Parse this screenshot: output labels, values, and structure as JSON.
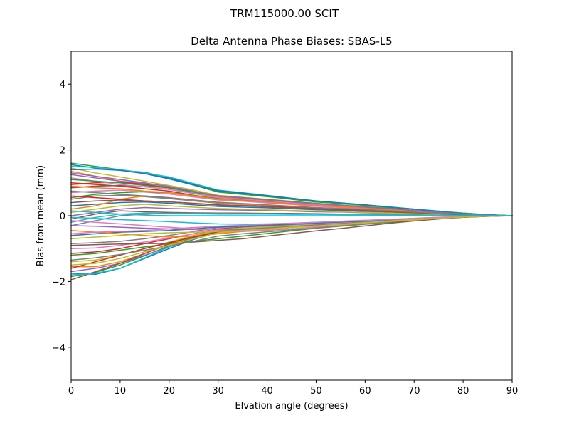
{
  "figure": {
    "suptitle": "TRM115000.00    SCIT"
  },
  "chart_data": {
    "type": "line",
    "title": "Delta Antenna Phase Biases: SBAS-L5",
    "xlabel": "Elvation angle (degrees)",
    "ylabel": "Bias from mean (mm)",
    "xlim": [
      0,
      90
    ],
    "ylim": [
      -5,
      5
    ],
    "xticks": [
      0,
      10,
      20,
      30,
      40,
      50,
      60,
      70,
      80,
      90
    ],
    "yticks": [
      -4,
      -2,
      0,
      2,
      4
    ],
    "ytick_labels": [
      "−4",
      "−2",
      "0",
      "2",
      "4"
    ],
    "grid": false,
    "legend": "none",
    "x": [
      0,
      5,
      10,
      15,
      20,
      25,
      30,
      35,
      40,
      45,
      50,
      55,
      60,
      65,
      70,
      75,
      80,
      85,
      90
    ],
    "series": [
      {
        "color": "#1f77b4",
        "values": [
          1.55,
          1.45,
          1.38,
          1.32,
          1.15,
          0.95,
          0.75,
          0.68,
          0.6,
          0.5,
          0.42,
          0.38,
          0.32,
          0.26,
          0.2,
          0.14,
          0.08,
          0.03,
          0.0
        ]
      },
      {
        "color": "#ff7f0e",
        "values": [
          1.35,
          1.2,
          1.05,
          0.95,
          0.85,
          0.72,
          0.58,
          0.52,
          0.46,
          0.4,
          0.34,
          0.3,
          0.26,
          0.21,
          0.16,
          0.11,
          0.06,
          0.02,
          0.0
        ]
      },
      {
        "color": "#2ca02c",
        "values": [
          1.6,
          1.5,
          1.4,
          1.3,
          1.12,
          0.93,
          0.72,
          0.65,
          0.58,
          0.5,
          0.42,
          0.37,
          0.31,
          0.25,
          0.19,
          0.13,
          0.07,
          0.03,
          0.0
        ]
      },
      {
        "color": "#d62728",
        "values": [
          1.0,
          0.95,
          0.9,
          0.82,
          0.75,
          0.62,
          0.5,
          0.45,
          0.4,
          0.35,
          0.3,
          0.26,
          0.22,
          0.18,
          0.14,
          0.09,
          0.05,
          0.02,
          0.0
        ]
      },
      {
        "color": "#9467bd",
        "values": [
          1.25,
          1.15,
          1.05,
          0.98,
          0.9,
          0.75,
          0.6,
          0.55,
          0.49,
          0.43,
          0.37,
          0.32,
          0.27,
          0.22,
          0.17,
          0.11,
          0.06,
          0.02,
          0.0
        ]
      },
      {
        "color": "#8c564b",
        "values": [
          0.85,
          0.9,
          0.92,
          0.88,
          0.8,
          0.68,
          0.55,
          0.5,
          0.45,
          0.39,
          0.33,
          0.29,
          0.25,
          0.2,
          0.15,
          0.1,
          0.06,
          0.02,
          0.0
        ]
      },
      {
        "color": "#e377c2",
        "values": [
          0.7,
          0.75,
          0.78,
          0.72,
          0.66,
          0.57,
          0.48,
          0.44,
          0.39,
          0.34,
          0.29,
          0.25,
          0.21,
          0.17,
          0.13,
          0.09,
          0.05,
          0.02,
          0.0
        ]
      },
      {
        "color": "#7f7f7f",
        "values": [
          0.5,
          0.6,
          0.62,
          0.58,
          0.52,
          0.45,
          0.38,
          0.35,
          0.31,
          0.27,
          0.23,
          0.2,
          0.17,
          0.14,
          0.11,
          0.07,
          0.04,
          0.01,
          0.0
        ]
      },
      {
        "color": "#bcbd22",
        "values": [
          1.45,
          1.3,
          1.18,
          1.05,
          0.92,
          0.78,
          0.62,
          0.56,
          0.5,
          0.44,
          0.38,
          0.33,
          0.28,
          0.22,
          0.17,
          0.11,
          0.06,
          0.02,
          0.0
        ]
      },
      {
        "color": "#17becf",
        "values": [
          1.5,
          1.47,
          1.4,
          1.3,
          1.18,
          0.98,
          0.78,
          0.7,
          0.62,
          0.53,
          0.45,
          0.39,
          0.33,
          0.27,
          0.2,
          0.14,
          0.08,
          0.03,
          0.0
        ]
      },
      {
        "color": "#1f77b4",
        "values": [
          0.3,
          0.35,
          0.4,
          0.42,
          0.38,
          0.33,
          0.28,
          0.26,
          0.24,
          0.21,
          0.18,
          0.16,
          0.13,
          0.11,
          0.08,
          0.05,
          0.03,
          0.01,
          0.0
        ]
      },
      {
        "color": "#ff7f0e",
        "values": [
          0.2,
          0.3,
          0.5,
          0.6,
          0.55,
          0.47,
          0.4,
          0.36,
          0.32,
          0.28,
          0.24,
          0.21,
          0.18,
          0.14,
          0.11,
          0.07,
          0.04,
          0.01,
          0.0
        ]
      },
      {
        "color": "#2ca02c",
        "values": [
          0.55,
          0.65,
          0.7,
          0.73,
          0.7,
          0.62,
          0.52,
          0.47,
          0.42,
          0.37,
          0.32,
          0.28,
          0.24,
          0.19,
          0.15,
          0.1,
          0.05,
          0.02,
          0.0
        ]
      },
      {
        "color": "#d62728",
        "values": [
          0.95,
          1.0,
          1.02,
          0.95,
          0.85,
          0.72,
          0.6,
          0.54,
          0.48,
          0.42,
          0.36,
          0.31,
          0.26,
          0.21,
          0.16,
          0.1,
          0.05,
          0.02,
          0.0
        ]
      },
      {
        "color": "#9467bd",
        "values": [
          0.0,
          0.1,
          0.2,
          0.25,
          0.22,
          0.2,
          0.18,
          0.17,
          0.16,
          0.14,
          0.12,
          0.11,
          0.09,
          0.07,
          0.05,
          0.03,
          0.02,
          0.01,
          0.0
        ]
      },
      {
        "color": "#8c564b",
        "values": [
          -0.1,
          0.05,
          0.15,
          0.12,
          0.1,
          0.09,
          0.08,
          0.08,
          0.07,
          0.07,
          0.06,
          0.05,
          0.04,
          0.03,
          0.02,
          0.02,
          0.01,
          0.0,
          0.0
        ]
      },
      {
        "color": "#e377c2",
        "values": [
          1.15,
          1.05,
          0.95,
          0.88,
          0.8,
          0.67,
          0.55,
          0.5,
          0.45,
          0.39,
          0.33,
          0.29,
          0.25,
          0.2,
          0.15,
          0.1,
          0.05,
          0.02,
          0.0
        ]
      },
      {
        "color": "#7f7f7f",
        "values": [
          -0.3,
          -0.15,
          0.0,
          0.05,
          0.08,
          0.08,
          0.07,
          0.07,
          0.06,
          0.06,
          0.05,
          0.04,
          0.04,
          0.03,
          0.02,
          0.01,
          0.01,
          0.0,
          0.0
        ]
      },
      {
        "color": "#bcbd22",
        "values": [
          0.1,
          0.2,
          0.3,
          0.35,
          0.3,
          0.26,
          0.22,
          0.2,
          0.18,
          0.16,
          0.14,
          0.12,
          0.1,
          0.08,
          0.06,
          0.04,
          0.02,
          0.01,
          0.0
        ]
      },
      {
        "color": "#17becf",
        "values": [
          -0.2,
          -0.05,
          0.05,
          0.08,
          0.06,
          0.06,
          0.05,
          0.05,
          0.05,
          0.04,
          0.04,
          0.03,
          0.03,
          0.02,
          0.02,
          0.01,
          0.01,
          0.0,
          0.0
        ]
      },
      {
        "color": "#1f77b4",
        "values": [
          -1.75,
          -1.78,
          -1.6,
          -1.3,
          -1.0,
          -0.72,
          -0.5,
          -0.42,
          -0.38,
          -0.34,
          -0.3,
          -0.26,
          -0.22,
          -0.17,
          -0.12,
          -0.08,
          -0.04,
          -0.01,
          0.0
        ]
      },
      {
        "color": "#ff7f0e",
        "values": [
          -1.55,
          -1.55,
          -1.4,
          -1.15,
          -0.88,
          -0.62,
          -0.45,
          -0.38,
          -0.34,
          -0.3,
          -0.27,
          -0.23,
          -0.19,
          -0.15,
          -0.11,
          -0.07,
          -0.04,
          -0.01,
          0.0
        ]
      },
      {
        "color": "#2ca02c",
        "values": [
          -1.85,
          -1.72,
          -1.5,
          -1.22,
          -0.92,
          -0.66,
          -0.47,
          -0.4,
          -0.36,
          -0.32,
          -0.28,
          -0.24,
          -0.2,
          -0.16,
          -0.12,
          -0.08,
          -0.04,
          -0.01,
          0.0
        ]
      },
      {
        "color": "#d62728",
        "values": [
          -1.15,
          -1.1,
          -1.0,
          -0.85,
          -0.7,
          -0.55,
          -0.4,
          -0.35,
          -0.31,
          -0.28,
          -0.25,
          -0.21,
          -0.17,
          -0.14,
          -0.1,
          -0.07,
          -0.03,
          -0.01,
          0.0
        ]
      },
      {
        "color": "#9467bd",
        "values": [
          -1.7,
          -1.6,
          -1.45,
          -1.2,
          -0.95,
          -0.7,
          -0.5,
          -0.43,
          -0.38,
          -0.34,
          -0.3,
          -0.26,
          -0.21,
          -0.17,
          -0.12,
          -0.08,
          -0.04,
          -0.01,
          0.0
        ]
      },
      {
        "color": "#8c564b",
        "values": [
          -1.95,
          -1.7,
          -1.45,
          -1.15,
          -0.85,
          -0.6,
          -0.42,
          -0.36,
          -0.32,
          -0.29,
          -0.26,
          -0.22,
          -0.18,
          -0.14,
          -0.1,
          -0.07,
          -0.03,
          -0.01,
          0.0
        ]
      },
      {
        "color": "#e377c2",
        "values": [
          -1.0,
          -0.98,
          -0.9,
          -0.8,
          -0.68,
          -0.55,
          -0.42,
          -0.37,
          -0.33,
          -0.3,
          -0.26,
          -0.22,
          -0.18,
          -0.14,
          -0.1,
          -0.07,
          -0.03,
          -0.01,
          0.0
        ]
      },
      {
        "color": "#7f7f7f",
        "values": [
          -0.85,
          -0.82,
          -0.78,
          -0.7,
          -0.6,
          -0.48,
          -0.36,
          -0.32,
          -0.29,
          -0.26,
          -0.23,
          -0.19,
          -0.16,
          -0.13,
          -0.09,
          -0.06,
          -0.03,
          -0.01,
          0.0
        ]
      },
      {
        "color": "#bcbd22",
        "values": [
          -1.4,
          -1.35,
          -1.2,
          -1.0,
          -0.8,
          -0.6,
          -0.44,
          -0.38,
          -0.34,
          -0.3,
          -0.27,
          -0.23,
          -0.19,
          -0.15,
          -0.11,
          -0.07,
          -0.04,
          -0.01,
          0.0
        ]
      },
      {
        "color": "#17becf",
        "values": [
          -1.8,
          -1.75,
          -1.6,
          -1.28,
          -0.95,
          -0.68,
          -0.48,
          -0.41,
          -0.37,
          -0.33,
          -0.29,
          -0.25,
          -0.21,
          -0.16,
          -0.12,
          -0.08,
          -0.04,
          -0.01,
          0.0
        ]
      },
      {
        "color": "#1f77b4",
        "values": [
          -0.6,
          -0.55,
          -0.5,
          -0.48,
          -0.45,
          -0.4,
          -0.34,
          -0.31,
          -0.28,
          -0.25,
          -0.22,
          -0.19,
          -0.16,
          -0.12,
          -0.09,
          -0.06,
          -0.03,
          -0.01,
          0.0
        ]
      },
      {
        "color": "#ff7f0e",
        "values": [
          -0.45,
          -0.5,
          -0.55,
          -0.6,
          -0.65,
          -0.62,
          -0.55,
          -0.48,
          -0.42,
          -0.36,
          -0.3,
          -0.25,
          -0.2,
          -0.15,
          -0.11,
          -0.07,
          -0.04,
          -0.01,
          0.0
        ]
      },
      {
        "color": "#2ca02c",
        "values": [
          -1.2,
          -1.15,
          -1.05,
          -0.95,
          -0.85,
          -0.78,
          -0.7,
          -0.62,
          -0.54,
          -0.46,
          -0.38,
          -0.32,
          -0.26,
          -0.2,
          -0.14,
          -0.09,
          -0.05,
          -0.02,
          0.0
        ]
      },
      {
        "color": "#d62728",
        "values": [
          -1.6,
          -1.4,
          -1.2,
          -1.0,
          -0.82,
          -0.65,
          -0.5,
          -0.43,
          -0.38,
          -0.34,
          -0.3,
          -0.26,
          -0.21,
          -0.17,
          -0.12,
          -0.08,
          -0.04,
          -0.01,
          0.0
        ]
      },
      {
        "color": "#9467bd",
        "values": [
          -0.3,
          -0.32,
          -0.35,
          -0.38,
          -0.4,
          -0.42,
          -0.44,
          -0.42,
          -0.38,
          -0.33,
          -0.28,
          -0.24,
          -0.19,
          -0.15,
          -0.11,
          -0.07,
          -0.04,
          -0.01,
          0.0
        ]
      },
      {
        "color": "#8c564b",
        "values": [
          -0.9,
          -0.88,
          -0.86,
          -0.85,
          -0.84,
          -0.8,
          -0.75,
          -0.7,
          -0.62,
          -0.54,
          -0.46,
          -0.39,
          -0.31,
          -0.23,
          -0.16,
          -0.1,
          -0.05,
          -0.02,
          0.0
        ]
      },
      {
        "color": "#e377c2",
        "values": [
          -0.15,
          -0.2,
          -0.25,
          -0.3,
          -0.35,
          -0.4,
          -0.45,
          -0.48,
          -0.45,
          -0.4,
          -0.34,
          -0.29,
          -0.24,
          -0.18,
          -0.13,
          -0.08,
          -0.04,
          -0.01,
          0.0
        ]
      },
      {
        "color": "#7f7f7f",
        "values": [
          -1.35,
          -1.28,
          -1.18,
          -1.05,
          -0.92,
          -0.78,
          -0.62,
          -0.55,
          -0.49,
          -0.43,
          -0.37,
          -0.31,
          -0.25,
          -0.19,
          -0.13,
          -0.08,
          -0.04,
          -0.01,
          0.0
        ]
      },
      {
        "color": "#bcbd22",
        "values": [
          -0.7,
          -0.65,
          -0.6,
          -0.55,
          -0.52,
          -0.5,
          -0.48,
          -0.45,
          -0.41,
          -0.36,
          -0.31,
          -0.26,
          -0.21,
          -0.16,
          -0.11,
          -0.07,
          -0.04,
          -0.01,
          0.0
        ]
      },
      {
        "color": "#17becf",
        "values": [
          -0.05,
          -0.08,
          -0.12,
          -0.15,
          -0.18,
          -0.22,
          -0.25,
          -0.26,
          -0.25,
          -0.23,
          -0.2,
          -0.17,
          -0.14,
          -0.11,
          -0.08,
          -0.05,
          -0.03,
          -0.01,
          0.0
        ]
      },
      {
        "color": "#1f77b4",
        "values": [
          1.4,
          1.42,
          1.38,
          1.28,
          1.12,
          0.94,
          0.76,
          0.69,
          0.61,
          0.53,
          0.45,
          0.39,
          0.33,
          0.26,
          0.2,
          0.13,
          0.07,
          0.03,
          0.0
        ]
      },
      {
        "color": "#ff7f0e",
        "values": [
          0.9,
          0.85,
          0.82,
          0.75,
          0.7,
          0.6,
          0.5,
          0.46,
          0.41,
          0.36,
          0.31,
          0.27,
          0.23,
          0.18,
          0.14,
          0.09,
          0.05,
          0.02,
          0.0
        ]
      },
      {
        "color": "#2ca02c",
        "values": [
          1.1,
          1.05,
          1.0,
          0.92,
          0.84,
          0.72,
          0.6,
          0.55,
          0.49,
          0.43,
          0.37,
          0.32,
          0.27,
          0.22,
          0.16,
          0.11,
          0.06,
          0.02,
          0.0
        ]
      },
      {
        "color": "#d62728",
        "values": [
          0.6,
          0.55,
          0.5,
          0.45,
          0.42,
          0.38,
          0.33,
          0.31,
          0.28,
          0.25,
          0.22,
          0.19,
          0.16,
          0.13,
          0.1,
          0.06,
          0.03,
          0.01,
          0.0
        ]
      },
      {
        "color": "#9467bd",
        "values": [
          1.3,
          1.2,
          1.1,
          1.0,
          0.88,
          0.74,
          0.6,
          0.54,
          0.48,
          0.42,
          0.36,
          0.31,
          0.26,
          0.21,
          0.16,
          0.1,
          0.05,
          0.02,
          0.0
        ]
      },
      {
        "color": "#8c564b",
        "values": [
          0.4,
          0.45,
          0.48,
          0.45,
          0.42,
          0.37,
          0.32,
          0.3,
          0.27,
          0.24,
          0.21,
          0.18,
          0.15,
          0.12,
          0.09,
          0.06,
          0.03,
          0.01,
          0.0
        ]
      },
      {
        "color": "#e377c2",
        "values": [
          -0.55,
          -0.5,
          -0.48,
          -0.45,
          -0.4,
          -0.36,
          -0.32,
          -0.29,
          -0.26,
          -0.23,
          -0.2,
          -0.17,
          -0.14,
          -0.11,
          -0.08,
          -0.05,
          -0.03,
          -0.01,
          0.0
        ]
      },
      {
        "color": "#7f7f7f",
        "values": [
          0.75,
          0.7,
          0.65,
          0.6,
          0.55,
          0.48,
          0.41,
          0.37,
          0.33,
          0.29,
          0.25,
          0.22,
          0.19,
          0.15,
          0.11,
          0.07,
          0.04,
          0.01,
          0.0
        ]
      },
      {
        "color": "#bcbd22",
        "values": [
          -1.5,
          -1.45,
          -1.3,
          -1.1,
          -0.9,
          -0.7,
          -0.52,
          -0.45,
          -0.4,
          -0.35,
          -0.31,
          -0.27,
          -0.22,
          -0.17,
          -0.13,
          -0.08,
          -0.04,
          -0.01,
          0.0
        ]
      },
      {
        "color": "#17becf",
        "values": [
          0.15,
          0.1,
          0.05,
          0.02,
          0.0,
          0.0,
          0.0,
          0.0,
          0.0,
          0.0,
          0.0,
          0.0,
          0.0,
          0.0,
          0.0,
          0.0,
          0.0,
          0.0,
          0.0
        ]
      }
    ]
  }
}
